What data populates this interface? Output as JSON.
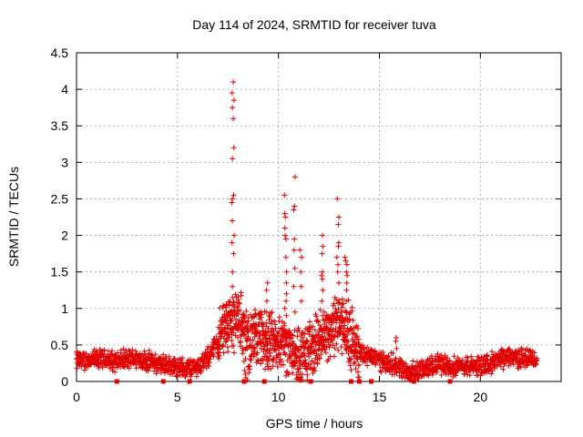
{
  "chart_data": {
    "type": "scatter",
    "title": "Day 114 of 2024, SRMTID for receiver tuva",
    "xlabel": "GPS time / hours",
    "ylabel": "SRMTID / TECUs",
    "xlim": [
      0,
      24
    ],
    "ylim": [
      0,
      4.5
    ],
    "xticks": [
      0,
      5,
      10,
      15,
      20
    ],
    "yticks": [
      0,
      0.5,
      1,
      1.5,
      2,
      2.5,
      3,
      3.5,
      4,
      4.5
    ],
    "xtick_labels": [
      "0",
      "5",
      "10",
      "15",
      "20"
    ],
    "ytick_labels": [
      "0",
      "0.5",
      "1",
      "1.5",
      "2",
      "2.5",
      "3",
      "3.5",
      "4",
      "4.5"
    ],
    "grid": true,
    "legend": "none",
    "marker": "+",
    "color": "#e00000",
    "background_level": [
      [
        0,
        0.28
      ],
      [
        1,
        0.3
      ],
      [
        2,
        0.28
      ],
      [
        3,
        0.32
      ],
      [
        4,
        0.24
      ],
      [
        5,
        0.2
      ],
      [
        5.8,
        0.18
      ],
      [
        6.4,
        0.28
      ],
      [
        7,
        0.55
      ],
      [
        7.4,
        0.75
      ],
      [
        8,
        0.9
      ],
      [
        8.5,
        0.55
      ],
      [
        9,
        0.6
      ],
      [
        9.5,
        0.5
      ],
      [
        10,
        0.55
      ],
      [
        10.5,
        0.5
      ],
      [
        11,
        0.35
      ],
      [
        11.5,
        0.4
      ],
      [
        12,
        0.55
      ],
      [
        12.5,
        0.7
      ],
      [
        13,
        0.8
      ],
      [
        13.6,
        0.6
      ],
      [
        14,
        0.4
      ],
      [
        15,
        0.3
      ],
      [
        15.5,
        0.25
      ],
      [
        16,
        0.2
      ],
      [
        16.5,
        0.12
      ],
      [
        17,
        0.15
      ],
      [
        18,
        0.25
      ],
      [
        19,
        0.2
      ],
      [
        20,
        0.22
      ],
      [
        21,
        0.3
      ],
      [
        21.5,
        0.35
      ],
      [
        22,
        0.32
      ],
      [
        22.8,
        0.3
      ]
    ],
    "spikes": [
      {
        "x": 7.75,
        "values": [
          4.1,
          3.95,
          3.85,
          3.75,
          3.6,
          3.2,
          3.05,
          2.55,
          2.5,
          2.45,
          2.2,
          2.0,
          1.9,
          1.75,
          1.5,
          1.3,
          1.15
        ]
      },
      {
        "x": 10.35,
        "values": [
          2.55,
          2.3,
          2.25,
          2.1,
          2.0,
          1.95,
          1.7,
          1.5,
          1.35,
          1.2,
          1.1,
          1.0
        ]
      },
      {
        "x": 10.8,
        "values": [
          2.8,
          2.4,
          2.35,
          1.95,
          1.8,
          1.55,
          1.3,
          0.95,
          0.7
        ]
      },
      {
        "x": 12.2,
        "values": [
          2.0,
          1.85,
          1.75,
          1.5,
          1.45,
          1.4,
          1.25,
          1.1,
          0.9
        ]
      },
      {
        "x": 12.95,
        "values": [
          2.5,
          2.25,
          2.15,
          1.9,
          1.85,
          1.7,
          1.6,
          1.5,
          1.35
        ]
      },
      {
        "x": 13.35,
        "values": [
          1.7,
          1.65,
          1.6,
          1.5,
          1.45,
          1.35,
          1.25,
          1.1
        ]
      },
      {
        "x": 9.45,
        "values": [
          1.35,
          1.25,
          1.1,
          0.95,
          0.8
        ]
      },
      {
        "x": 11.1,
        "values": [
          1.8,
          1.7,
          1.5,
          1.3,
          1.1
        ]
      },
      {
        "x": 15.85,
        "values": [
          0.6,
          0.55,
          0.45
        ]
      }
    ],
    "dips": [
      {
        "x": 8.4,
        "values": [
          0.15,
          0.1,
          0.05,
          0.02
        ]
      },
      {
        "x": 16.6,
        "values": [
          0.08,
          0.05,
          0.02
        ]
      }
    ],
    "baseline_markers_x": [
      2.0,
      4.3,
      5.6,
      8.3,
      9.3,
      11.6,
      13.6,
      14.0,
      14.6,
      16.7,
      18.5
    ]
  }
}
